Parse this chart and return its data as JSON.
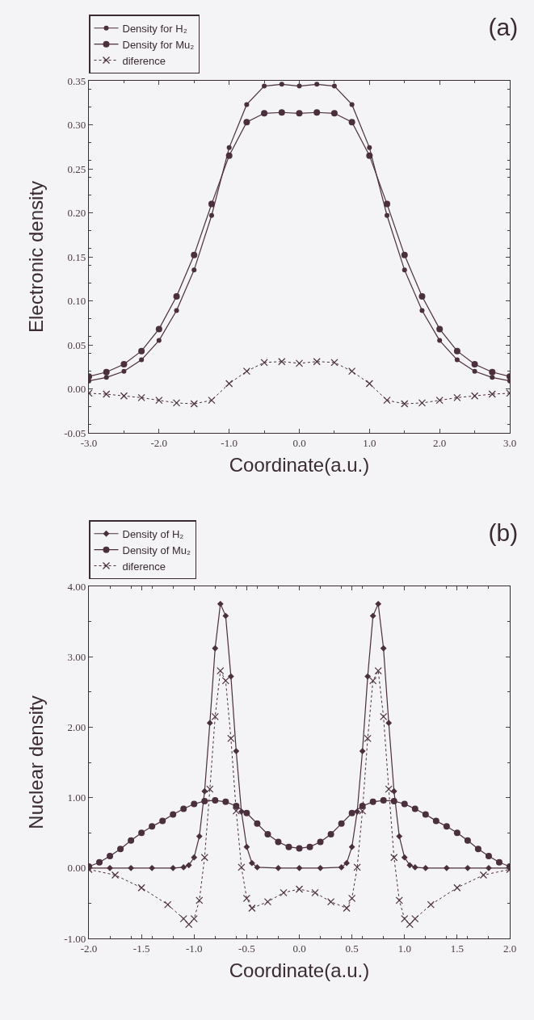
{
  "chart_data": [
    {
      "type": "line",
      "title": "(a)",
      "xlabel": "Coordinate(a.u.)",
      "ylabel": "Electronic density",
      "legend": "top left",
      "grid": false,
      "xlim": [
        -3,
        3
      ],
      "ylim": [
        -0.05,
        0.35
      ],
      "xticks": [
        {
          "value": -3,
          "label": "-3.0"
        },
        {
          "value": -2,
          "label": "-2.0"
        },
        {
          "value": -1,
          "label": "-1.0"
        },
        {
          "value": 0,
          "label": "0.0"
        },
        {
          "value": 1,
          "label": "1.0"
        },
        {
          "value": 2,
          "label": "2.0"
        },
        {
          "value": 3,
          "label": "3.0"
        }
      ],
      "yticks": [
        {
          "value": -0.05,
          "label": "-0.05"
        },
        {
          "value": 0,
          "label": "0.00"
        },
        {
          "value": 0.05,
          "label": "0.05"
        },
        {
          "value": 0.1,
          "label": "0.10"
        },
        {
          "value": 0.15,
          "label": "0.15"
        },
        {
          "value": 0.2,
          "label": "0.20"
        },
        {
          "value": 0.25,
          "label": "0.25"
        },
        {
          "value": 0.3,
          "label": "0.30"
        },
        {
          "value": 0.35,
          "label": "0.35"
        }
      ],
      "x": [
        -3,
        -2.75,
        -2.5,
        -2.25,
        -2,
        -1.75,
        -1.5,
        -1.25,
        -1,
        -0.75,
        -0.5,
        -0.25,
        0,
        0.25,
        0.5,
        0.75,
        1,
        1.25,
        1.5,
        1.75,
        2,
        2.25,
        2.5,
        2.75,
        3
      ],
      "series": [
        {
          "name": "Density for H₂",
          "color": "#4a2f3d",
          "marker": "circle",
          "line_style": "solid",
          "values": [
            0.009,
            0.013,
            0.02,
            0.033,
            0.055,
            0.089,
            0.135,
            0.197,
            0.274,
            0.323,
            0.344,
            0.346,
            0.344,
            0.346,
            0.344,
            0.323,
            0.274,
            0.197,
            0.135,
            0.089,
            0.055,
            0.033,
            0.02,
            0.013,
            0.009
          ]
        },
        {
          "name": "Density for Mu₂",
          "color": "#4a2f3d",
          "marker": "circle",
          "line_style": "solid",
          "values": [
            0.014,
            0.019,
            0.028,
            0.043,
            0.068,
            0.105,
            0.152,
            0.21,
            0.265,
            0.303,
            0.313,
            0.314,
            0.313,
            0.314,
            0.313,
            0.303,
            0.265,
            0.21,
            0.152,
            0.105,
            0.068,
            0.043,
            0.028,
            0.019,
            0.014
          ]
        },
        {
          "name": "diference",
          "color": "#4a2f3d",
          "marker": "cross",
          "line_style": "dotted",
          "values": [
            -0.005,
            -0.006,
            -0.008,
            -0.01,
            -0.013,
            -0.016,
            -0.017,
            -0.013,
            0.006,
            0.02,
            0.03,
            0.031,
            0.029,
            0.031,
            0.03,
            0.02,
            0.006,
            -0.013,
            -0.017,
            -0.016,
            -0.013,
            -0.01,
            -0.008,
            -0.006,
            -0.005
          ]
        }
      ]
    },
    {
      "type": "line",
      "title": "(b)",
      "xlabel": "Coordinate(a.u.)",
      "ylabel": "Nuclear density",
      "legend": "top left",
      "grid": false,
      "xlim": [
        -2,
        2
      ],
      "ylim": [
        -1,
        4
      ],
      "xticks": [
        {
          "value": -2,
          "label": "-2.0"
        },
        {
          "value": -1.5,
          "label": "-1.5"
        },
        {
          "value": -1,
          "label": "-1.0"
        },
        {
          "value": -0.5,
          "label": "-0.5"
        },
        {
          "value": 0,
          "label": "0.0"
        },
        {
          "value": 0.5,
          "label": "0.5"
        },
        {
          "value": 1,
          "label": "1.0"
        },
        {
          "value": 1.5,
          "label": "1.5"
        },
        {
          "value": 2,
          "label": "2.0"
        }
      ],
      "yticks": [
        {
          "value": -1,
          "label": "-1.00"
        },
        {
          "value": 0,
          "label": "0.00"
        },
        {
          "value": 1,
          "label": "1.00"
        },
        {
          "value": 2,
          "label": "2.00"
        },
        {
          "value": 3,
          "label": "3.00"
        },
        {
          "value": 4,
          "label": "4.00"
        }
      ],
      "series": [
        {
          "name": "Density of H₂",
          "color": "#4a2f3d",
          "marker": "diamond",
          "line_style": "solid",
          "x": [
            -2,
            -1.8,
            -1.6,
            -1.4,
            -1.2,
            -1.1,
            -1.05,
            -1,
            -0.95,
            -0.9,
            -0.85,
            -0.8,
            -0.75,
            -0.7,
            -0.65,
            -0.6,
            -0.55,
            -0.5,
            -0.45,
            -0.4,
            -0.2,
            0,
            0.2,
            0.4,
            0.45,
            0.5,
            0.55,
            0.6,
            0.65,
            0.7,
            0.75,
            0.8,
            0.85,
            0.9,
            0.95,
            1,
            1.05,
            1.1,
            1.2,
            1.4,
            1.6,
            1.8,
            2
          ],
          "values": [
            0,
            0,
            0,
            0,
            0,
            0.01,
            0.04,
            0.15,
            0.45,
            1.09,
            2.06,
            3.12,
            3.75,
            3.58,
            2.72,
            1.66,
            0.8,
            0.3,
            0.07,
            0.01,
            0,
            0,
            0,
            0.01,
            0.07,
            0.3,
            0.8,
            1.66,
            2.72,
            3.58,
            3.75,
            3.12,
            2.06,
            1.09,
            0.45,
            0.15,
            0.04,
            0.01,
            0,
            0,
            0,
            0,
            0
          ]
        },
        {
          "name": "Density of Mu₂",
          "color": "#4a2f3d",
          "marker": "circle",
          "line_style": "solid",
          "x": [
            -2,
            -1.9,
            -1.8,
            -1.7,
            -1.6,
            -1.5,
            -1.4,
            -1.3,
            -1.2,
            -1.1,
            -1,
            -0.9,
            -0.8,
            -0.7,
            -0.6,
            -0.5,
            -0.4,
            -0.3,
            -0.2,
            -0.1,
            0,
            0.1,
            0.2,
            0.3,
            0.4,
            0.5,
            0.6,
            0.7,
            0.8,
            0.9,
            1,
            1.1,
            1.2,
            1.3,
            1.4,
            1.5,
            1.6,
            1.7,
            1.8,
            1.9,
            2
          ],
          "values": [
            0.02,
            0.08,
            0.17,
            0.27,
            0.39,
            0.5,
            0.59,
            0.67,
            0.76,
            0.84,
            0.91,
            0.95,
            0.96,
            0.94,
            0.88,
            0.78,
            0.63,
            0.48,
            0.37,
            0.3,
            0.28,
            0.3,
            0.37,
            0.48,
            0.63,
            0.78,
            0.88,
            0.94,
            0.96,
            0.95,
            0.91,
            0.84,
            0.76,
            0.67,
            0.59,
            0.5,
            0.39,
            0.27,
            0.17,
            0.08,
            0.02
          ]
        },
        {
          "name": "diference",
          "color": "#4a2f3d",
          "marker": "cross",
          "line_style": "dotted",
          "x": [
            -2,
            -1.75,
            -1.5,
            -1.25,
            -1.1,
            -1.05,
            -1,
            -0.95,
            -0.9,
            -0.85,
            -0.8,
            -0.75,
            -0.7,
            -0.65,
            -0.6,
            -0.55,
            -0.5,
            -0.45,
            -0.3,
            -0.15,
            0,
            0.15,
            0.3,
            0.45,
            0.5,
            0.55,
            0.6,
            0.65,
            0.7,
            0.75,
            0.8,
            0.85,
            0.9,
            0.95,
            1,
            1.05,
            1.1,
            1.25,
            1.5,
            1.75,
            2
          ],
          "values": [
            -0.02,
            -0.1,
            -0.28,
            -0.52,
            -0.72,
            -0.8,
            -0.72,
            -0.46,
            0.15,
            1.12,
            2.15,
            2.8,
            2.66,
            1.84,
            0.81,
            0.01,
            -0.43,
            -0.57,
            -0.48,
            -0.35,
            -0.3,
            -0.35,
            -0.48,
            -0.57,
            -0.43,
            0.01,
            0.81,
            1.84,
            2.66,
            2.8,
            2.15,
            1.12,
            0.15,
            -0.46,
            -0.72,
            -0.8,
            -0.72,
            -0.52,
            -0.28,
            -0.1,
            -0.02
          ]
        }
      ]
    }
  ]
}
